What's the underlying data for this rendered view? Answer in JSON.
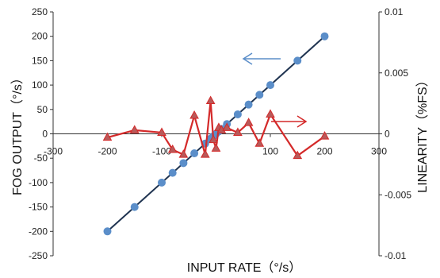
{
  "chart_data": {
    "type": "scatter",
    "xlabel": "INPUT RATE（°/s）",
    "ylabel_left": "FOG OUTPUT（°/s）",
    "ylabel_right": "LINEARITY（%FS）",
    "xlim": [
      -300,
      300
    ],
    "ylim_left": [
      -250,
      250
    ],
    "ylim_right": [
      -0.01,
      0.01
    ],
    "x_ticks": [
      "-300",
      "-200",
      "-100",
      "0",
      "100",
      "200",
      "300"
    ],
    "y_left_ticks": [
      "250",
      "200",
      "150",
      "100",
      "50",
      "0",
      "-50",
      "-100",
      "-150",
      "-200",
      "-250"
    ],
    "y_right_ticks": [
      "0.01",
      "0.005",
      "0",
      "-0.005",
      "-0.01"
    ],
    "grid": false,
    "series": [
      {
        "axis": "left",
        "color": "#5b8ec9",
        "line_color": "#1f3350",
        "marker": "circle",
        "x": [
          -200,
          -150,
          -100,
          -80,
          -60,
          -40,
          -20,
          -10,
          -5,
          0,
          5,
          10,
          20,
          40,
          60,
          80,
          100,
          150,
          200
        ],
        "y": [
          -200,
          -150,
          -100,
          -80,
          -60,
          -40,
          -20,
          -10,
          -5,
          0,
          5,
          10,
          20,
          40,
          60,
          80,
          100,
          150,
          200
        ]
      },
      {
        "axis": "right",
        "color": "#d42a2a",
        "marker": "triangle",
        "x": [
          -200,
          -150,
          -100,
          -80,
          -60,
          -40,
          -20,
          -10,
          -5,
          0,
          5,
          10,
          20,
          40,
          60,
          80,
          100,
          150,
          200
        ],
        "y": [
          -0.0003,
          0.0003,
          0.0001,
          -0.0013,
          -0.0017,
          0.0015,
          -0.0017,
          0.0027,
          -0.0005,
          -0.0012,
          0.0005,
          0.0003,
          0.0005,
          0.0001,
          0.0009,
          -0.0008,
          0.0016,
          -0.0018,
          -0.0002
        ]
      }
    ],
    "annotations": [
      {
        "text": "left-arrow",
        "color": "#5b8ec9",
        "refers_to_axis": "left"
      },
      {
        "text": "right-arrow",
        "color": "#d42a2a",
        "refers_to_axis": "right"
      }
    ]
  }
}
